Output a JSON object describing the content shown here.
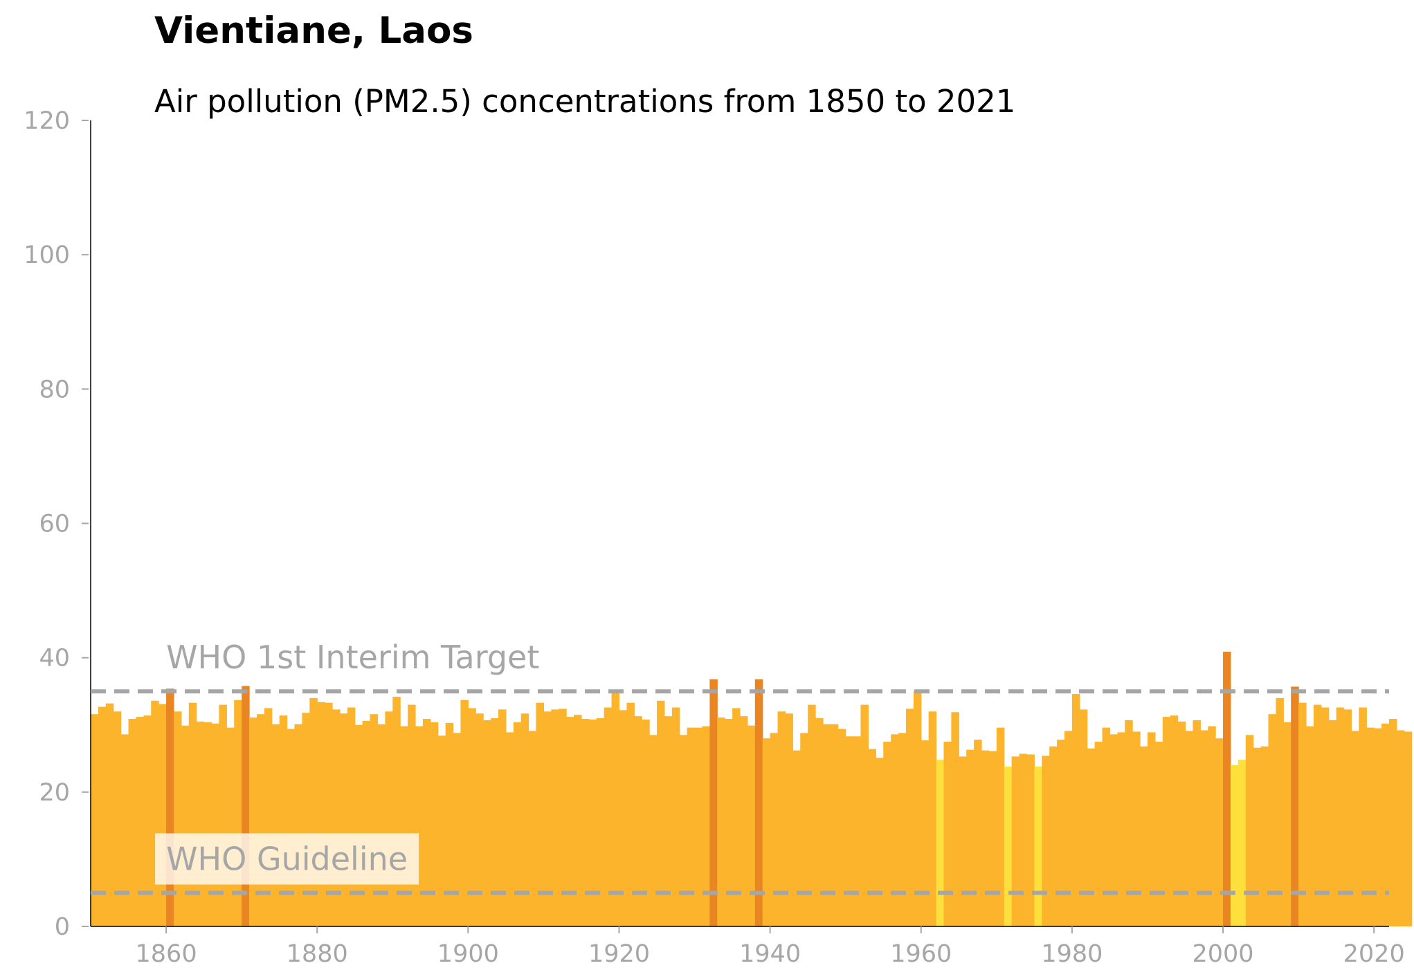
{
  "chart_data": {
    "type": "bar",
    "title": "Vientiane, Laos",
    "subtitle": "Air pollution (PM2.5) concentrations from 1850 to 2021",
    "xlabel": "",
    "ylabel": "",
    "xlim": [
      1850,
      2022
    ],
    "ylim": [
      0,
      120
    ],
    "x_ticks": [
      1860,
      1880,
      1900,
      1920,
      1940,
      1960,
      1980,
      2000,
      2020
    ],
    "y_ticks": [
      0,
      20,
      40,
      60,
      80,
      100,
      120
    ],
    "grid": false,
    "legend": "none",
    "x_start": 1850,
    "values": [
      31.6,
      32.7,
      33.2,
      32.0,
      28.6,
      30.9,
      31.2,
      31.4,
      33.6,
      33.1,
      35.4,
      32.0,
      29.9,
      33.3,
      30.5,
      30.4,
      30.2,
      33.0,
      29.6,
      33.7,
      35.8,
      31.1,
      31.6,
      32.5,
      30.1,
      31.4,
      29.4,
      30.1,
      31.8,
      34.0,
      33.4,
      33.3,
      32.3,
      31.7,
      32.6,
      30.0,
      30.6,
      31.6,
      30.1,
      32.0,
      34.2,
      29.8,
      33.0,
      29.8,
      30.9,
      30.4,
      28.4,
      30.3,
      28.8,
      33.7,
      32.5,
      31.7,
      30.7,
      31.0,
      32.3,
      28.9,
      30.4,
      31.7,
      29.1,
      33.3,
      32.0,
      32.3,
      32.4,
      31.2,
      31.5,
      30.9,
      30.8,
      31.0,
      32.6,
      35.0,
      32.2,
      33.3,
      31.3,
      30.8,
      28.5,
      33.6,
      31.3,
      32.6,
      28.5,
      29.6,
      29.6,
      29.8,
      36.8,
      31.1,
      30.9,
      32.5,
      31.3,
      29.9,
      36.8,
      28.0,
      28.8,
      32.0,
      31.7,
      26.2,
      28.8,
      33.0,
      31.0,
      30.1,
      30.1,
      29.4,
      28.3,
      28.3,
      33.0,
      26.4,
      25.1,
      27.5,
      28.6,
      28.8,
      32.4,
      35.0,
      27.7,
      32.0,
      24.8,
      27.5,
      31.9,
      25.3,
      26.3,
      27.8,
      26.2,
      26.1,
      29.6,
      23.8,
      25.3,
      25.7,
      25.6,
      23.8,
      25.4,
      26.8,
      27.8,
      29.1,
      34.6,
      32.3,
      26.5,
      27.5,
      29.6,
      28.6,
      28.9,
      30.7,
      29.0,
      26.8,
      28.9,
      27.5,
      31.2,
      31.4,
      30.5,
      29.1,
      30.7,
      29.2,
      29.8,
      28.0,
      40.9,
      24.0,
      24.8,
      28.5,
      26.6,
      26.8,
      31.6,
      34.0,
      30.4,
      35.7,
      33.3,
      29.8,
      33.0,
      32.6,
      30.7,
      32.6,
      32.3,
      29.1,
      32.6,
      29.6,
      29.5,
      30.2,
      30.9,
      29.2,
      29.0
    ],
    "colors": {
      "default": "#fcb42c",
      "above_35": "#e98523",
      "below_25": "#fde03c"
    },
    "reference_lines": [
      {
        "label": "WHO 1st Interim Target",
        "value": 35
      },
      {
        "label": "WHO Guideline",
        "value": 5
      }
    ]
  }
}
